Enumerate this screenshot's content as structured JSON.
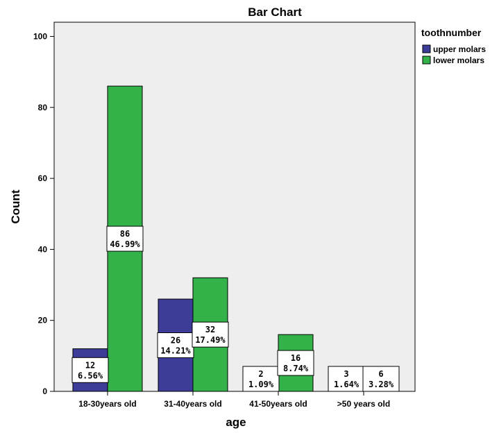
{
  "chart_data": {
    "type": "bar",
    "title": "Bar Chart",
    "xlabel": "age",
    "ylabel": "Count",
    "categories": [
      "18-30years old",
      "31-40years old",
      "41-50years old",
      ">50 years old"
    ],
    "series": [
      {
        "name": "upper molars",
        "color": "#3D3D99",
        "values": [
          12,
          26,
          2,
          3
        ],
        "labels": [
          [
            "12",
            "6.56%"
          ],
          [
            "26",
            "14.21%"
          ],
          [
            "2",
            "1.09%"
          ],
          [
            "3",
            "1.64%"
          ]
        ]
      },
      {
        "name": "lower molars",
        "color": "#33B24A",
        "values": [
          86,
          32,
          16,
          6
        ],
        "labels": [
          [
            "86",
            "46.99%"
          ],
          [
            "32",
            "17.49%"
          ],
          [
            "16",
            "8.74%"
          ],
          [
            "6",
            "3.28%"
          ]
        ]
      }
    ],
    "ylim": [
      0,
      104
    ],
    "yticks": [
      0,
      20,
      40,
      60,
      80,
      100
    ],
    "legend": {
      "title": "toothnumber",
      "position": "top-right outside"
    },
    "plot_background": "#EEEEEE",
    "grid": false
  }
}
